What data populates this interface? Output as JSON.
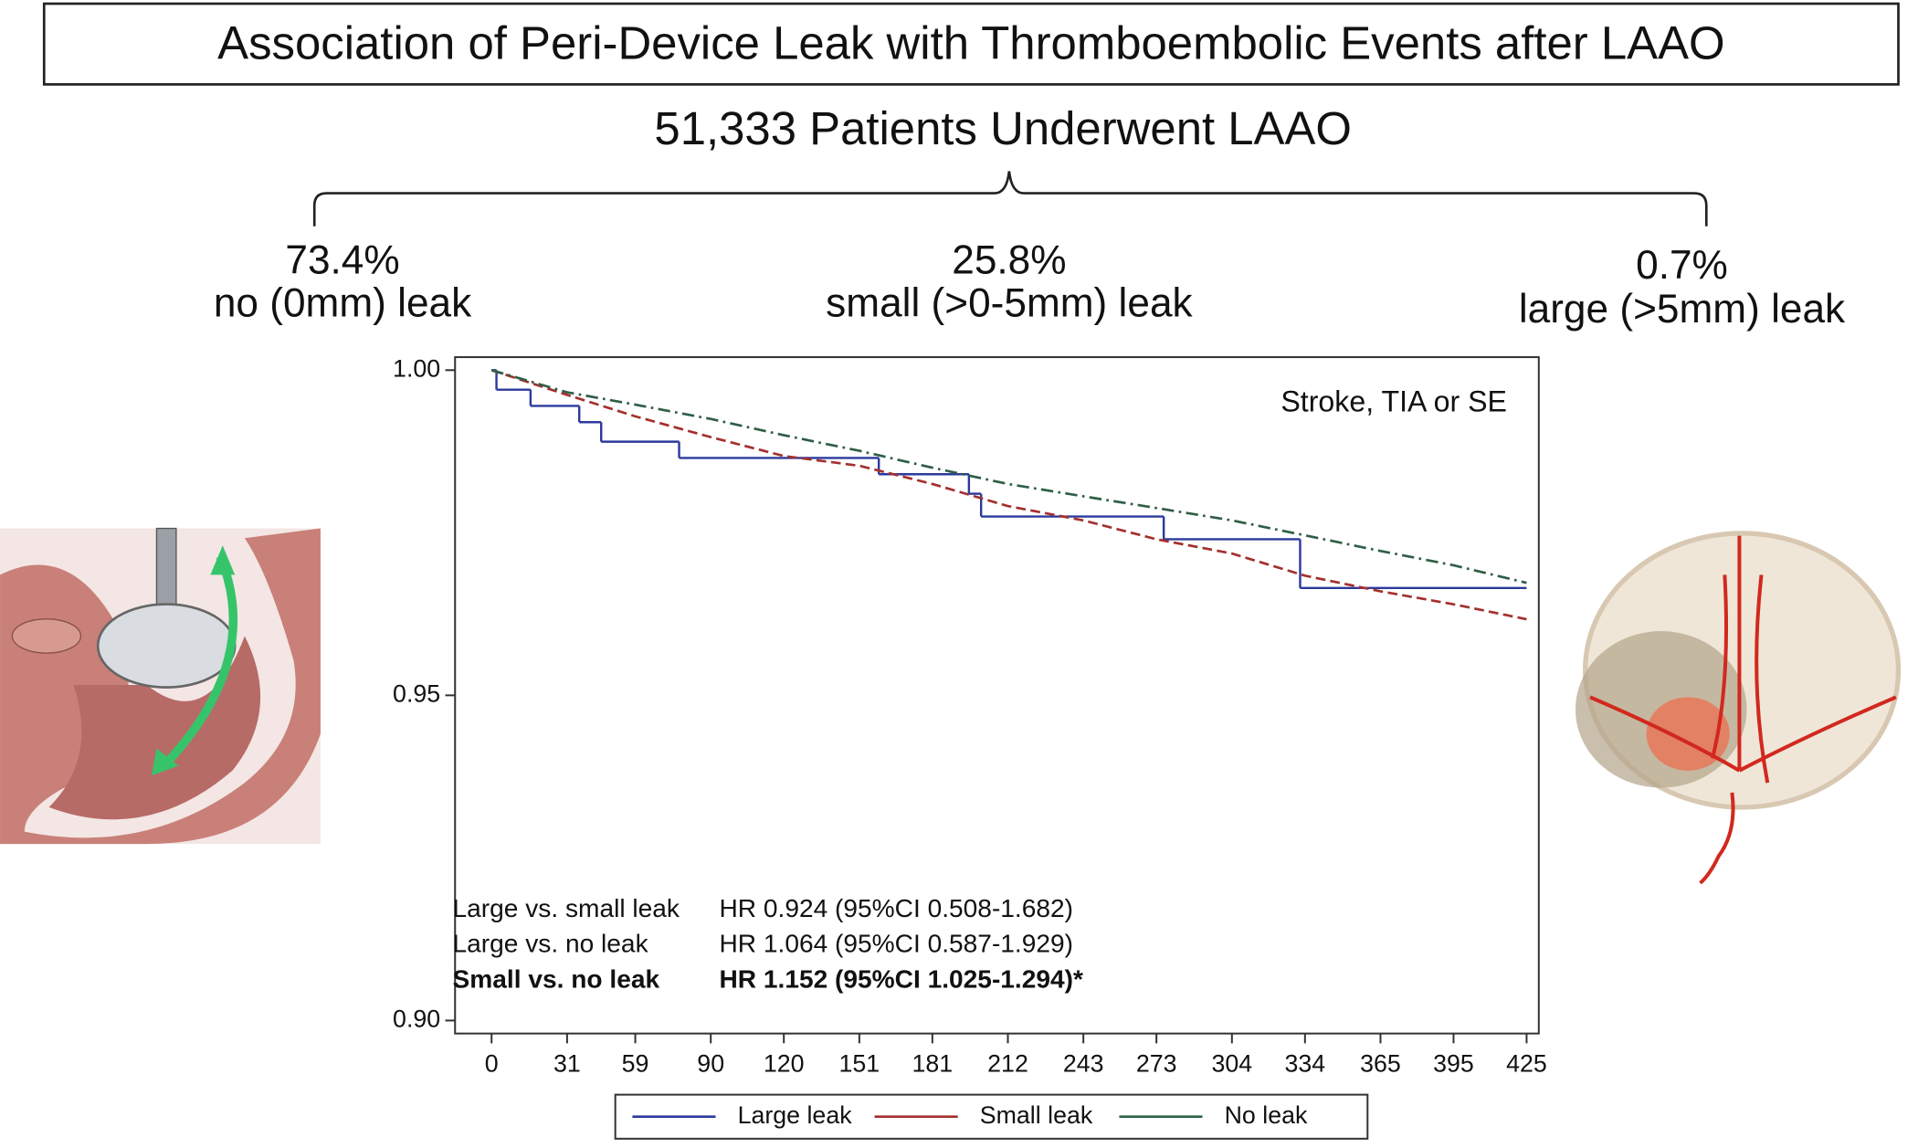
{
  "header": {
    "title": "Association of Peri-Device Leak with Thromboembolic Events after LAAO",
    "subtitle": "51,333 Patients Underwent LAAO",
    "groups": [
      {
        "percent": "73.4%",
        "label": "no (0mm) leak"
      },
      {
        "percent": "25.8%",
        "label": "small (>0-5mm) leak"
      },
      {
        "percent": "0.7%",
        "label": "large (>5mm) leak"
      }
    ]
  },
  "chart_data": {
    "type": "line",
    "annotation": "Stroke, TIA or SE",
    "xlim": [
      -15,
      430
    ],
    "ylim": [
      0.898,
      1.002
    ],
    "xticks": [
      0,
      31,
      59,
      90,
      120,
      151,
      181,
      212,
      243,
      273,
      304,
      334,
      365,
      395,
      425
    ],
    "yticks": [
      {
        "value": 1,
        "label": "1.00"
      },
      {
        "value": 0.95,
        "label": "0.95"
      },
      {
        "value": 0.9,
        "label": "0.90"
      }
    ],
    "series": [
      {
        "name": "Large leak",
        "color": "#2b3a9c",
        "line_style": "solid",
        "step": true,
        "x": [
          0,
          2,
          16,
          36,
          45,
          77,
          159,
          196,
          201,
          276,
          332,
          425
        ],
        "values": [
          1.0,
          0.997,
          0.9945,
          0.992,
          0.989,
          0.9865,
          0.984,
          0.981,
          0.9775,
          0.974,
          0.9665,
          0.9665
        ]
      },
      {
        "name": "Small leak",
        "color": "#a3302e",
        "line_style": "dashed",
        "step": false,
        "x": [
          0,
          31,
          59,
          90,
          120,
          151,
          181,
          212,
          243,
          273,
          304,
          334,
          365,
          395,
          425
        ],
        "values": [
          1.0,
          0.9962,
          0.9929,
          0.9897,
          0.9868,
          0.9853,
          0.9825,
          0.9791,
          0.9769,
          0.974,
          0.9718,
          0.9684,
          0.966,
          0.964,
          0.9617
        ]
      },
      {
        "name": "No leak",
        "color": "#2f5f46",
        "line_style": "dashdot",
        "step": false,
        "x": [
          0,
          31,
          59,
          90,
          120,
          151,
          181,
          212,
          243,
          273,
          304,
          334,
          365,
          395,
          425
        ],
        "values": [
          1.0,
          0.9966,
          0.9947,
          0.9925,
          0.99,
          0.9876,
          0.985,
          0.9825,
          0.9806,
          0.9788,
          0.9769,
          0.9746,
          0.9722,
          0.97,
          0.9673
        ]
      }
    ],
    "hazard_ratios": [
      {
        "comparison": "Large vs. small leak",
        "result": "HR 0.924 (95%CI 0.508-1.682)",
        "bold": false
      },
      {
        "comparison": "Large vs. no leak",
        "result": "HR 1.064 (95%CI 0.587-1.929)",
        "bold": false
      },
      {
        "comparison": "Small vs. no leak",
        "result": "HR 1.152 (95%CI 1.025-1.294)*",
        "bold": true
      }
    ]
  }
}
